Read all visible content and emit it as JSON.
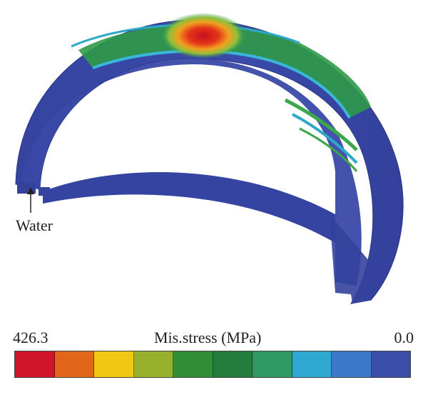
{
  "annotation": {
    "water_label": "Water"
  },
  "legend": {
    "max_label": "426.3",
    "title": "Mis.stress (MPa)",
    "min_label": "0.0",
    "colors": [
      "#d0142a",
      "#e2661a",
      "#f0c814",
      "#97b12c",
      "#2f8e36",
      "#237d3c",
      "#2e9a62",
      "#2ea7d1",
      "#3c78c8",
      "#3a4ea8"
    ]
  },
  "colors": {
    "shell_base": "#3a49a6",
    "shell_dark": "#2f3b8c",
    "hotspot": "#e0201c"
  }
}
